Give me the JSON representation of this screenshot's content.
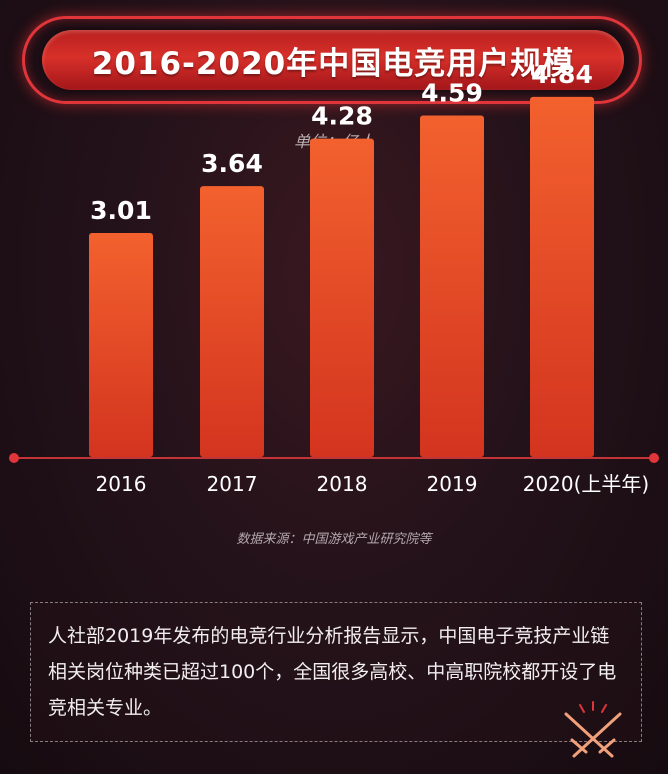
{
  "title": "2016-2020年中国电竞用户规模",
  "unit_label": "单位：亿人",
  "source": "数据来源：中国游戏产业研究院等",
  "note": "人社部2019年发布的电竞行业分析报告显示，中国电子竞技产业链相关岗位种类已超过100个，全国很多高校、中高职院校都开设了电竞相关专业。",
  "colors": {
    "bar_top": "#f05a2a",
    "bar_bottom": "#d73722",
    "axis": "#c33436",
    "accent_red": "#e0353a"
  },
  "decoration_icon": "crossed-swords-icon",
  "chart_data": {
    "type": "bar",
    "title": "2016-2020年中国电竞用户规模",
    "ylabel": "单位：亿人",
    "categories": [
      "2016",
      "2017",
      "2018",
      "2019",
      "2020(上半年)"
    ],
    "values": [
      3.01,
      3.64,
      4.28,
      4.59,
      4.84
    ],
    "data_labels": [
      "3.01",
      "3.64",
      "4.28",
      "4.59",
      "4.84"
    ],
    "ylim": [
      0,
      5
    ],
    "grid": false,
    "legend": "none"
  }
}
